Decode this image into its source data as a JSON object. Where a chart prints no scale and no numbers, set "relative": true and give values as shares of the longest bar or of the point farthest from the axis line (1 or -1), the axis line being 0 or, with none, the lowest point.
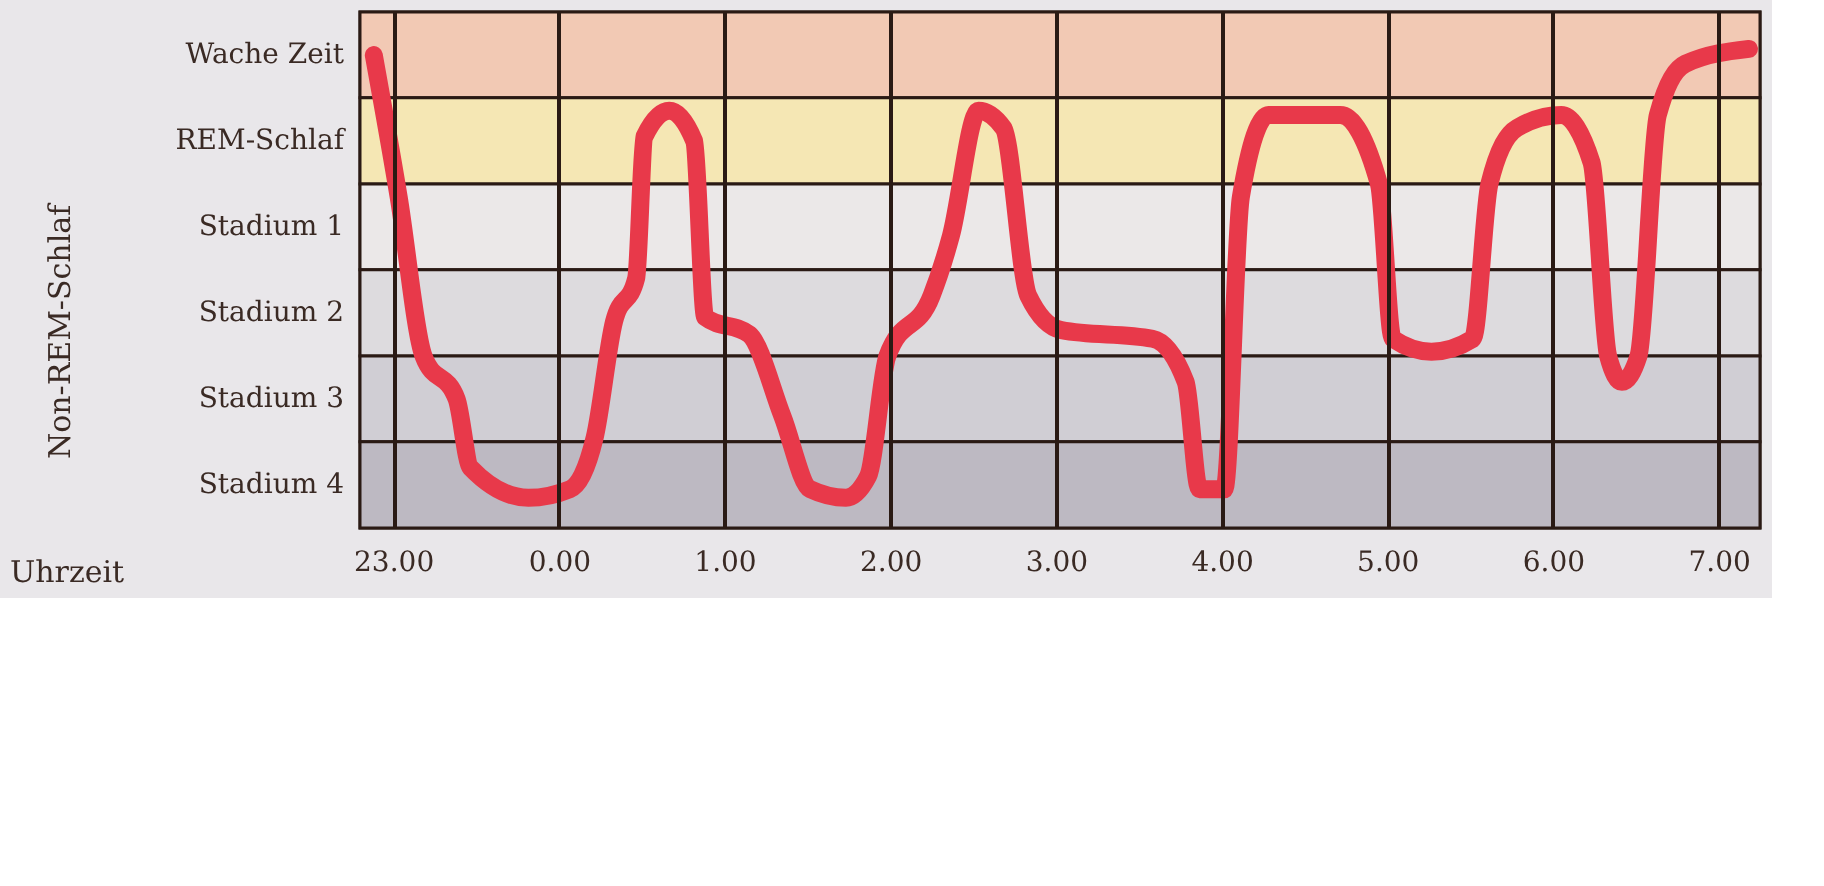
{
  "chart_data": {
    "type": "line",
    "annotations": [
      "Uhrzeit",
      "Non-REM-Schlaf"
    ],
    "relative": true,
    "x": [
      "2000-01-01T22:53",
      "2000-01-01T23:02",
      "2000-01-01T23:11",
      "2000-01-01T23:23",
      "2000-01-01T23:28",
      "2000-01-01T23:49",
      "2000-01-02T00:04",
      "2000-01-02T00:13",
      "2000-01-02T00:20",
      "2000-01-02T00:28",
      "2000-01-02T00:31",
      "2000-01-02T00:40",
      "2000-01-02T00:49",
      "2000-01-02T00:53",
      "2000-01-02T01:09",
      "2000-01-02T01:21",
      "2000-01-02T01:31",
      "2000-01-02T01:44",
      "2000-01-02T01:52",
      "2000-01-02T01:59",
      "2000-01-02T02:15",
      "2000-01-02T02:22",
      "2000-01-02T02:32",
      "2000-01-02T02:41",
      "2000-01-02T02:50",
      "2000-01-02T03:02",
      "2000-01-02T03:35",
      "2000-01-02T03:47",
      "2000-01-02T03:52",
      "2000-01-02T04:01",
      "2000-01-02T04:07",
      "2000-01-02T04:17",
      "2000-01-02T04:43",
      "2000-01-02T04:57",
      "2000-01-02T05:02",
      "2000-01-02T05:16",
      "2000-01-02T05:31",
      "2000-01-02T05:37",
      "2000-01-02T05:47",
      "2000-01-02T06:03",
      "2000-01-02T06:14",
      "2000-01-02T06:20",
      "2000-01-02T06:25",
      "2000-01-02T06:31",
      "2000-01-02T06:38",
      "2000-01-02T06:48",
      "2000-01-02T07:11"
    ],
    "series": [
      {
        "color": "#e8394a",
        "values": [
          0.987,
          0.691,
          0.359,
          0.269,
          0.126,
          0.063,
          0.081,
          0.189,
          0.431,
          0.521,
          0.817,
          0.871,
          0.808,
          0.44,
          0.404,
          0.233,
          0.081,
          0.063,
          0.108,
          0.359,
          0.485,
          0.61,
          0.871,
          0.835,
          0.485,
          0.413,
          0.395,
          0.305,
          0.081,
          0.081,
          0.691,
          0.862,
          0.862,
          0.718,
          0.395,
          0.368,
          0.395,
          0.718,
          0.835,
          0.862,
          0.763,
          0.359,
          0.305,
          0.359,
          0.862,
          0.969,
          1.0
        ]
      }
    ],
    "xlim": [
      "2000-01-01T22:48",
      "2000-01-02T07:15"
    ],
    "xticks": [
      {
        "value": "2000-01-01T23:00",
        "label": "23.00"
      },
      {
        "value": "2000-01-02T00:00",
        "label": "0.00"
      },
      {
        "value": "2000-01-02T01:00",
        "label": "1.00"
      },
      {
        "value": "2000-01-02T02:00",
        "label": "2.00"
      },
      {
        "value": "2000-01-02T03:00",
        "label": "3.00"
      },
      {
        "value": "2000-01-02T04:00",
        "label": "4.00"
      },
      {
        "value": "2000-01-02T05:00",
        "label": "5.00"
      },
      {
        "value": "2000-01-02T06:00",
        "label": "6.00"
      },
      {
        "value": "2000-01-02T07:00",
        "label": "7.00"
      }
    ],
    "bands": [
      {
        "axis": "y",
        "from": 0.898,
        "to": 1.077,
        "label": "Wache Zeit",
        "color": "#f2c9b4"
      },
      {
        "axis": "y",
        "from": 0.718,
        "to": 0.898,
        "label": "REM-Schlaf",
        "color": "#f5e7b4"
      },
      {
        "axis": "y",
        "from": 0.539,
        "to": 0.718,
        "label": "Stadium 1",
        "color": "#ebe8e8"
      },
      {
        "axis": "y",
        "from": 0.359,
        "to": 0.539,
        "label": "Stadium 2",
        "color": "#dddbde"
      },
      {
        "axis": "y",
        "from": 0.18,
        "to": 0.359,
        "label": "Stadium 3",
        "color": "#d0ced4"
      },
      {
        "axis": "y",
        "from": 0,
        "to": 0.18,
        "label": "Stadium 4",
        "color": "#bdb9c2"
      }
    ],
    "grid": "x",
    "line_style": "solid"
  }
}
